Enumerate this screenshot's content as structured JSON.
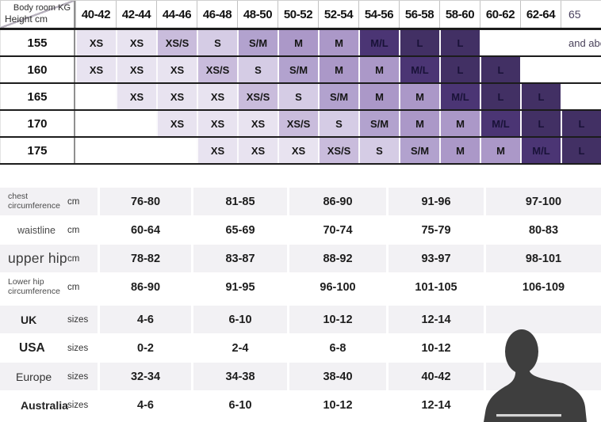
{
  "matrix": {
    "corner_top": "Body room KG",
    "corner_bottom": "Height cm",
    "columns": [
      "40-42",
      "42-44",
      "44-46",
      "46-48",
      "48-50",
      "50-52",
      "52-54",
      "54-56",
      "56-58",
      "58-60",
      "60-62",
      "62-64",
      "65"
    ],
    "last_column_note": "and above",
    "rows": [
      {
        "height": "155",
        "cells": [
          "XS",
          "XS",
          "XS/S",
          "S",
          "S/M",
          "M",
          "M",
          "M/L",
          "L",
          "L",
          "",
          "",
          "and above"
        ]
      },
      {
        "height": "160",
        "cells": [
          "XS",
          "XS",
          "XS",
          "XS/S",
          "S",
          "S/M",
          "M",
          "M",
          "M/L",
          "L",
          "L",
          "",
          ""
        ]
      },
      {
        "height": "165",
        "cells": [
          "",
          "XS",
          "XS",
          "XS",
          "XS/S",
          "S",
          "S/M",
          "M",
          "M",
          "M/L",
          "L",
          "L",
          ""
        ]
      },
      {
        "height": "170",
        "cells": [
          "",
          "",
          "XS",
          "XS",
          "XS",
          "XS/S",
          "S",
          "S/M",
          "M",
          "M",
          "M/L",
          "L",
          "L"
        ]
      },
      {
        "height": "175",
        "cells": [
          "",
          "",
          "",
          "XS",
          "XS",
          "XS",
          "XS/S",
          "S",
          "S/M",
          "M",
          "M",
          "M/L",
          "L"
        ]
      }
    ],
    "size_colors": {
      "XS": "#e8e3f0",
      "XS/S": "#c9bcdc",
      "S": "#d5cce5",
      "S/M": "#b2a2ce",
      "M": "#ab98c8",
      "M/L": "#4b3574",
      "L": "#423064"
    }
  },
  "measurements": {
    "rows": [
      {
        "label": "chest circumference",
        "unit": "cm",
        "values": [
          "76-80",
          "81-85",
          "86-90",
          "91-96",
          "97-100"
        ],
        "style": "small"
      },
      {
        "label": "waistline",
        "unit": "cm",
        "values": [
          "60-64",
          "65-69",
          "70-74",
          "75-79",
          "80-83"
        ],
        "style": "medium"
      },
      {
        "label": "upper hip",
        "unit": "cm",
        "values": [
          "78-82",
          "83-87",
          "88-92",
          "93-97",
          "98-101"
        ],
        "style": "large"
      },
      {
        "label": "Lower hip circumference",
        "unit": "cm",
        "values": [
          "86-90",
          "91-95",
          "96-100",
          "101-105",
          "106-109"
        ],
        "style": "small"
      }
    ]
  },
  "sizes": {
    "rows": [
      {
        "label": "UK",
        "unit": "sizes",
        "values": [
          "4-6",
          "6-10",
          "10-12",
          "12-14",
          ""
        ],
        "style": "bold"
      },
      {
        "label": "USA",
        "unit": "sizes",
        "values": [
          "0-2",
          "2-4",
          "6-8",
          "10-12",
          ""
        ],
        "style": "bold-large"
      },
      {
        "label": "Europe",
        "unit": "sizes",
        "values": [
          "32-34",
          "34-38",
          "38-40",
          "40-42",
          ""
        ],
        "style": "regular"
      },
      {
        "label": "Australia",
        "unit": "sizes",
        "values": [
          "4-6",
          "6-10",
          "10-12",
          "12-14",
          ""
        ],
        "style": "bold"
      }
    ]
  },
  "silhouette": {
    "body_color": "#3e3e3e",
    "tape_color": "#d4d4d4"
  }
}
